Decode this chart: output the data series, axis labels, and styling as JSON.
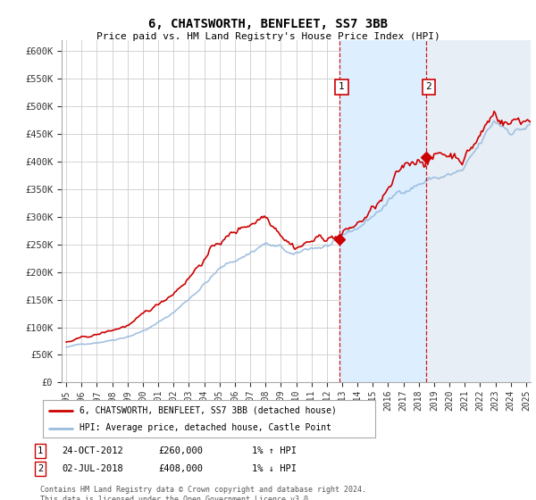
{
  "title": "6, CHATSWORTH, BENFLEET, SS7 3BB",
  "subtitle": "Price paid vs. HM Land Registry's House Price Index (HPI)",
  "bg_color": "#ffffff",
  "grid_color": "#cccccc",
  "hpi_line_color": "#99bbdd",
  "price_line_color": "#cc0000",
  "shade_color": "#ddeeff",
  "hatch_color": "#bbccdd",
  "marker1_x": 2012.82,
  "marker1_y": 260000,
  "marker2_x": 2018.5,
  "marker2_y": 408000,
  "marker1_date": "24-OCT-2012",
  "marker1_price": "£260,000",
  "marker1_hpi": "1% ↑ HPI",
  "marker2_date": "02-JUL-2018",
  "marker2_price": "£408,000",
  "marker2_hpi": "1% ↓ HPI",
  "legend_line1": "6, CHATSWORTH, BENFLEET, SS7 3BB (detached house)",
  "legend_line2": "HPI: Average price, detached house, Castle Point",
  "footnote": "Contains HM Land Registry data © Crown copyright and database right 2024.\nThis data is licensed under the Open Government Licence v3.0.",
  "ylim": [
    0,
    620000
  ],
  "yticks": [
    0,
    50000,
    100000,
    150000,
    200000,
    250000,
    300000,
    350000,
    400000,
    450000,
    500000,
    550000,
    600000
  ],
  "ytick_labels": [
    "£0",
    "£50K",
    "£100K",
    "£150K",
    "£200K",
    "£250K",
    "£300K",
    "£350K",
    "£400K",
    "£450K",
    "£500K",
    "£550K",
    "£600K"
  ],
  "xlim_left": 1994.7,
  "xlim_right": 2025.3,
  "xtick_years": [
    1995,
    1996,
    1997,
    1998,
    1999,
    2000,
    2001,
    2002,
    2003,
    2004,
    2005,
    2006,
    2007,
    2008,
    2009,
    2010,
    2011,
    2012,
    2013,
    2014,
    2015,
    2016,
    2017,
    2018,
    2019,
    2020,
    2021,
    2022,
    2023,
    2024,
    2025
  ]
}
